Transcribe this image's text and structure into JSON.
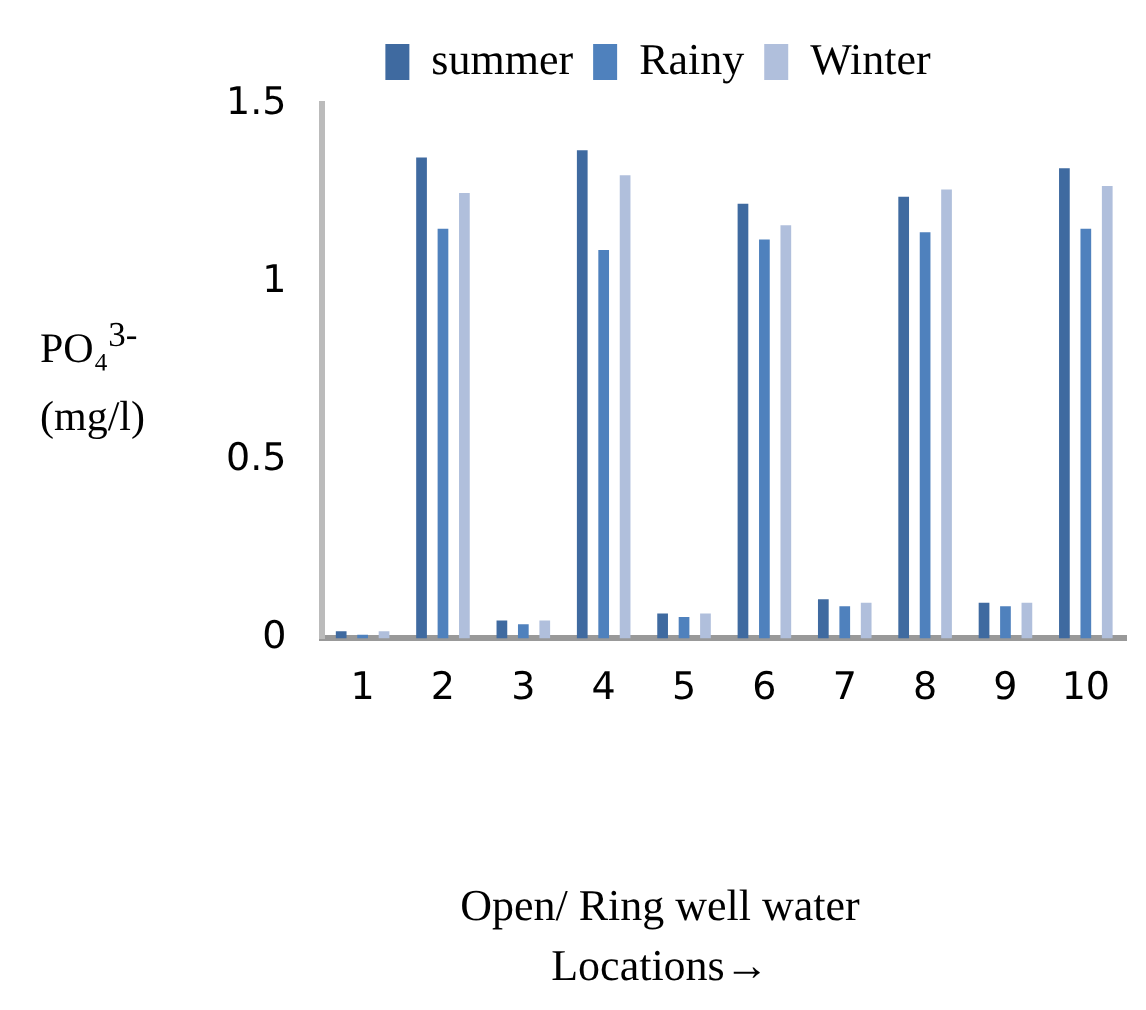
{
  "chart_data": {
    "type": "bar",
    "xlabel": "Open/ Ring well water Locations→",
    "ylabel": "PO₄$^{3-}$ (mg/l)",
    "categories": [
      "1",
      "2",
      "3",
      "4",
      "5",
      "6",
      "7",
      "8",
      "9",
      "10"
    ],
    "series": [
      {
        "name": "summer",
        "color": "#3f6aa0",
        "values": [
          0.02,
          1.35,
          0.05,
          1.37,
          0.07,
          1.22,
          0.11,
          1.24,
          0.1,
          1.32
        ]
      },
      {
        "name": "Rainy",
        "color": "#4f81bd",
        "values": [
          0.01,
          1.15,
          0.04,
          1.09,
          0.06,
          1.12,
          0.09,
          1.14,
          0.09,
          1.15
        ]
      },
      {
        "name": "Winter",
        "color": "#b0bfdc",
        "values": [
          0.02,
          1.25,
          0.05,
          1.3,
          0.07,
          1.16,
          0.1,
          1.26,
          0.1,
          1.27
        ]
      }
    ],
    "ylim": [
      0,
      1.5
    ],
    "yticks": [
      0,
      0.5,
      1,
      1.5
    ],
    "grid": false,
    "legend": "top"
  }
}
